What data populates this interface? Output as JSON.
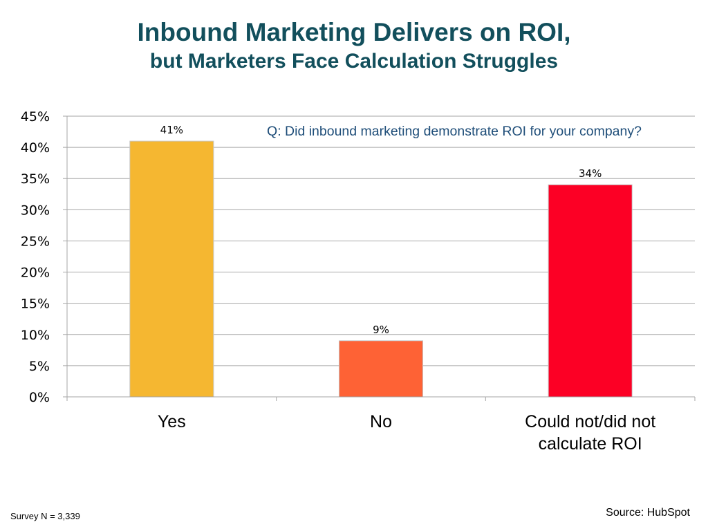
{
  "slide": {
    "title_line1": "Inbound Marketing Delivers on ROI,",
    "title_line2": "but Marketers Face Calculation Struggles",
    "survey_note": "Survey N = 3,339",
    "source_note": "Source: HubSpot"
  },
  "chart_data": {
    "type": "bar",
    "annotation": "Q: Did inbound marketing demonstrate ROI for your company?",
    "categories": [
      [
        "Yes"
      ],
      [
        "No"
      ],
      [
        "Could not/did not",
        "calculate ROI"
      ]
    ],
    "values": [
      41,
      9,
      34
    ],
    "data_labels": [
      "41%",
      "9%",
      "34%"
    ],
    "bar_colors": [
      "#f5b731",
      "#fe6235",
      "#fc0025"
    ],
    "ylim": [
      0,
      45
    ],
    "yticks": [
      0,
      5,
      10,
      15,
      20,
      25,
      30,
      35,
      40,
      45
    ],
    "ytick_labels": [
      "0%",
      "5%",
      "10%",
      "15%",
      "20%",
      "25%",
      "30%",
      "35%",
      "40%",
      "45%"
    ],
    "grid": true,
    "legend": "none",
    "xlabel": "",
    "ylabel": ""
  }
}
